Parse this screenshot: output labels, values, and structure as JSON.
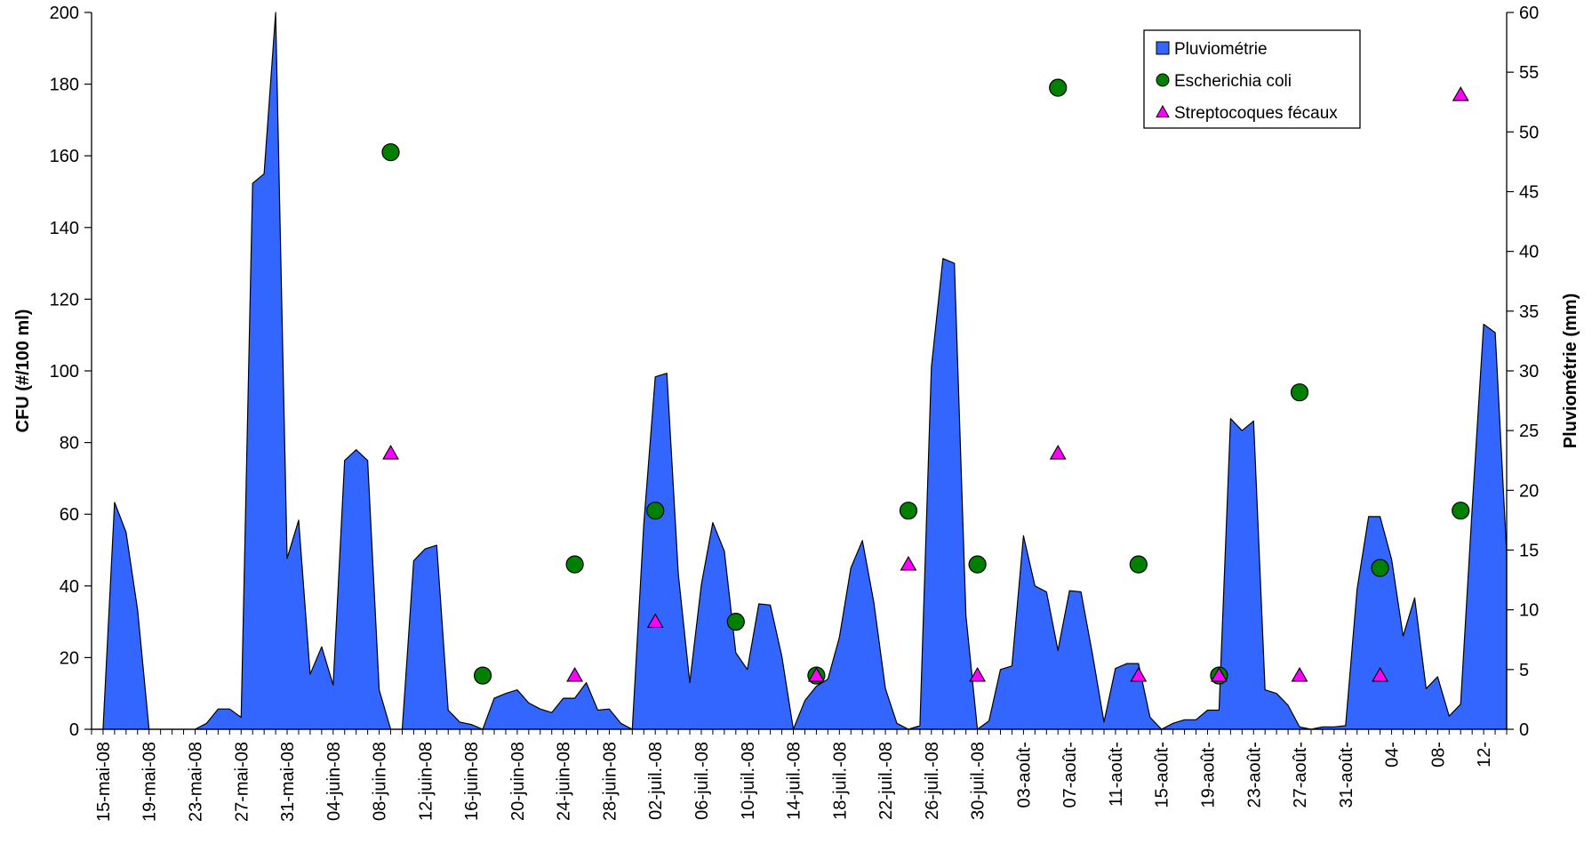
{
  "chart_data": {
    "type": "area",
    "y_left_label": "CFU (#/100  ml)",
    "y_right_label": "Pluviométrie (mm)",
    "y_left_range": [
      0,
      200
    ],
    "y_right_range": [
      0,
      60
    ],
    "y_left_ticks": [
      "0",
      "20",
      "40",
      "60",
      "80",
      "100",
      "120",
      "140",
      "160",
      "180",
      "200"
    ],
    "y_right_ticks": [
      "0",
      "5",
      "10",
      "15",
      "20",
      "25",
      "30",
      "35",
      "40",
      "45",
      "50",
      "55",
      "60"
    ],
    "x_tick_labels": [
      "15-mai-08",
      "19-mai-08",
      "23-mai-08",
      "27-mai-08",
      "31-mai-08",
      "04-juin-08",
      "08-juin-08",
      "12-juin-08",
      "16-juin-08",
      "20-juin-08",
      "24-juin-08",
      "28-juin-08",
      "02-juil.-08",
      "06-juil.-08",
      "10-juil.-08",
      "14-juil.-08",
      "18-juil.-08",
      "22-juil.-08",
      "26-juil.-08",
      "30-juil.-08",
      "03-août-",
      "07-août-",
      "11-août-",
      "15-août-",
      "19-août-",
      "23-août-",
      "27-août-",
      "31-août-",
      "04-",
      "08-",
      "12-"
    ],
    "grid": false,
    "legend_position": "top-right",
    "legend": [
      {
        "label": "Pluviométrie",
        "color": "#3366FF",
        "marker": "square"
      },
      {
        "label": "Escherichia coli",
        "color": "#008000",
        "marker": "circle"
      },
      {
        "label": "Streptocoques fécaux",
        "color": "#FF00FF",
        "marker": "triangle"
      }
    ],
    "series": [
      {
        "name": "Pluviométrie",
        "type": "area",
        "axis": "right",
        "values": [
          0,
          0,
          19,
          16.5,
          10,
          0,
          0,
          0,
          0,
          0,
          0.5,
          1.7,
          1.7,
          1,
          45.7,
          46.5,
          60,
          14.3,
          17.5,
          4.6,
          6.9,
          3.7,
          22.5,
          23.4,
          22.5,
          3.3,
          0,
          0,
          14.1,
          15.1,
          15.4,
          1.6,
          0.6,
          0.4,
          0,
          2.6,
          3,
          3.3,
          2.2,
          1.7,
          1.4,
          2.6,
          2.6,
          3.9,
          1.6,
          1.7,
          0.5,
          0,
          17.2,
          29.5,
          29.8,
          13,
          3.9,
          12.1,
          17.3,
          14.9,
          6.4,
          5,
          10.5,
          10.4,
          6.1,
          0,
          2.4,
          3.6,
          4.2,
          7.7,
          13.5,
          15.8,
          10.6,
          3.4,
          0.5,
          0,
          0.3,
          30.3,
          39.4,
          39,
          9.5,
          0,
          0.7,
          5,
          5.3,
          16.2,
          12,
          11.5,
          6.6,
          11.6,
          11.5,
          6.3,
          0.6,
          5.1,
          5.5,
          5.5,
          1,
          0,
          0.5,
          0.8,
          0.8,
          1.6,
          1.6,
          26,
          25,
          25.8,
          3.3,
          3,
          2,
          0.2,
          0,
          0.2,
          0.2,
          0.3,
          11.7,
          17.8,
          17.8,
          14.2,
          7.8,
          11,
          3.4,
          4.4,
          1.1,
          2.1,
          18.5,
          33.9,
          33.2,
          14.7
        ]
      },
      {
        "name": "Escherichia coli",
        "type": "scatter",
        "axis": "left",
        "points": [
          {
            "x": "09-juin-08",
            "y": 161
          },
          {
            "x": "17-juin-08",
            "y": 15
          },
          {
            "x": "25-juin-08",
            "y": 46
          },
          {
            "x": "02-juil.-08",
            "y": 61
          },
          {
            "x": "09-juil.-08",
            "y": 30
          },
          {
            "x": "16-juil.-08",
            "y": 15
          },
          {
            "x": "24-juil.-08",
            "y": 61
          },
          {
            "x": "30-juil.-08",
            "y": 46
          },
          {
            "x": "06-août-08",
            "y": 179
          },
          {
            "x": "13-août-08",
            "y": 46
          },
          {
            "x": "20-août-08",
            "y": 15
          },
          {
            "x": "27-août-08",
            "y": 94
          },
          {
            "x": "03-sept.-08",
            "y": 45
          },
          {
            "x": "10-sept.-08",
            "y": 61
          }
        ]
      },
      {
        "name": "Streptocoques fécaux",
        "type": "scatter",
        "axis": "left",
        "points": [
          {
            "x": "09-juin-08",
            "y": 77
          },
          {
            "x": "25-juin-08",
            "y": 15
          },
          {
            "x": "02-juil.-08",
            "y": 30
          },
          {
            "x": "16-juil.-08",
            "y": 15
          },
          {
            "x": "24-juil.-08",
            "y": 46
          },
          {
            "x": "30-juil.-08",
            "y": 15
          },
          {
            "x": "06-août-08",
            "y": 77
          },
          {
            "x": "13-août-08",
            "y": 15
          },
          {
            "x": "20-août-08",
            "y": 15
          },
          {
            "x": "27-août-08",
            "y": 15
          },
          {
            "x": "03-sept.-08",
            "y": 15
          },
          {
            "x": "10-sept.-08",
            "y": 177
          }
        ]
      }
    ]
  }
}
